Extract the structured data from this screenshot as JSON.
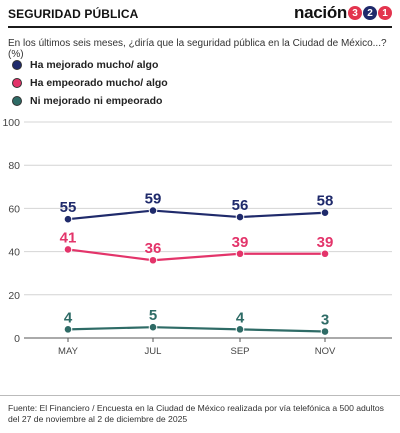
{
  "header": {
    "section_title": "SEGURIDAD PÚBLICA",
    "brand_word": "nación",
    "brand_digits": [
      "3",
      "2",
      "1"
    ],
    "brand_digit_colors": [
      "#e3344e",
      "#1f2a6b",
      "#e3344e"
    ]
  },
  "question": "En los últimos seis meses, ¿diría que la seguridad pública en la Ciudad de México...? (%)",
  "chart_data": {
    "type": "line",
    "categories": [
      "MAY",
      "JUL",
      "SEP",
      "NOV"
    ],
    "ylim": [
      0,
      100
    ],
    "yticks": [
      0,
      20,
      40,
      60,
      80,
      100
    ],
    "grid": true,
    "legend_position": "top-left",
    "series": [
      {
        "name": "Ha mejorado mucho/ algo",
        "values": [
          55,
          59,
          56,
          58
        ],
        "color": "#1f2a6b"
      },
      {
        "name": "Ha empeorado mucho/ algo",
        "values": [
          41,
          36,
          39,
          39
        ],
        "color": "#e3346a"
      },
      {
        "name": "Ni mejorado ni empeorado",
        "values": [
          4,
          5,
          4,
          3
        ],
        "color": "#2e6b66"
      }
    ]
  },
  "source": "Fuente: El Financiero / Encuesta en la Ciudad de México realizada por vía telefónica a 500 adultos del 27 de noviembre al 2 de diciembre de 2025"
}
